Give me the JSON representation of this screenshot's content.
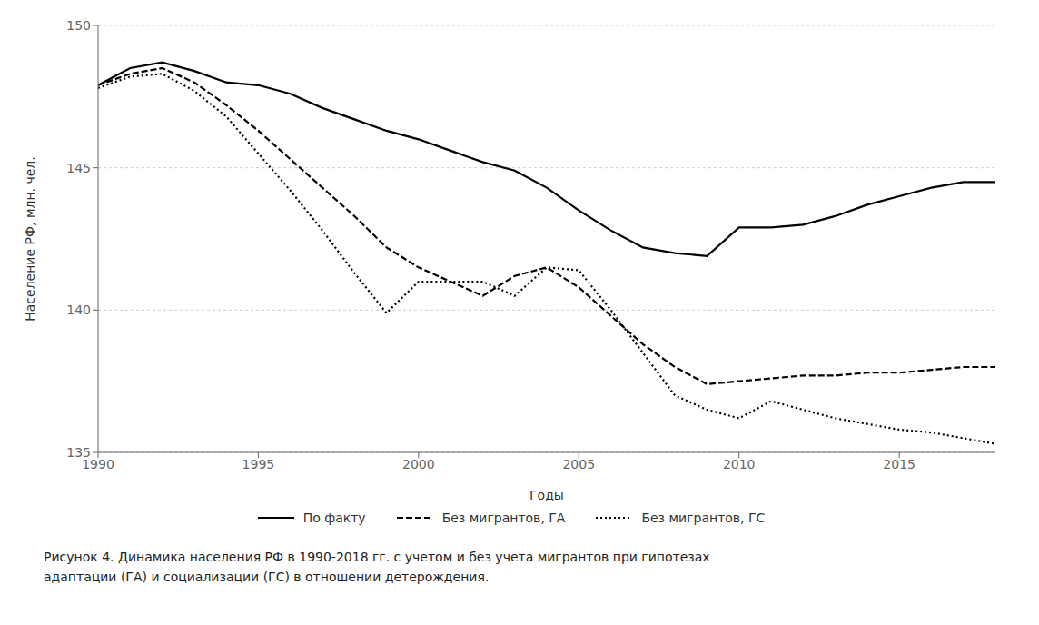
{
  "chart_data": {
    "type": "line",
    "x": [
      1990,
      1991,
      1992,
      1993,
      1994,
      1995,
      1996,
      1997,
      1998,
      1999,
      2000,
      2001,
      2002,
      2003,
      2004,
      2005,
      2006,
      2007,
      2008,
      2009,
      2010,
      2011,
      2012,
      2013,
      2014,
      2015,
      2016,
      2017,
      2018
    ],
    "series": [
      {
        "name": "По факту",
        "color": "#000000",
        "line_style": "solid",
        "values": [
          147.9,
          148.5,
          148.7,
          148.4,
          148.0,
          147.9,
          147.6,
          147.1,
          146.7,
          146.3,
          146.0,
          145.6,
          145.2,
          144.9,
          144.3,
          143.5,
          142.8,
          142.2,
          142.0,
          141.9,
          142.9,
          142.9,
          143.0,
          143.3,
          143.7,
          144.0,
          144.3,
          144.5,
          144.5
        ]
      },
      {
        "name": "Без мигрантов, ГА",
        "color": "#000000",
        "line_style": "dashed",
        "values": [
          147.9,
          148.3,
          148.5,
          148.0,
          147.2,
          146.3,
          145.3,
          144.3,
          143.3,
          142.2,
          141.5,
          141.0,
          140.5,
          141.2,
          141.5,
          140.8,
          139.8,
          138.8,
          138.0,
          137.4,
          137.5,
          137.6,
          137.7,
          137.7,
          137.8,
          137.8,
          137.9,
          138.0,
          138.0
        ]
      },
      {
        "name": "Без мигрантов, ГС",
        "color": "#000000",
        "line_style": "dotted",
        "values": [
          147.8,
          148.2,
          148.3,
          147.7,
          146.8,
          145.5,
          144.2,
          142.8,
          141.3,
          139.9,
          141.0,
          141.0,
          141.0,
          140.5,
          141.5,
          141.4,
          140.0,
          138.5,
          137.0,
          136.5,
          136.2,
          136.8,
          136.5,
          136.2,
          136.0,
          135.8,
          135.7,
          135.5,
          135.3
        ]
      }
    ],
    "xlim": [
      1990,
      2018
    ],
    "xticks": [
      1990,
      1995,
      2000,
      2005,
      2010,
      2015
    ],
    "ylim": [
      135,
      150
    ],
    "yticks": [
      135,
      140,
      145,
      150
    ],
    "ylabel": "Население РФ, млн. чел.",
    "xlabel": "Годы",
    "grid": true,
    "caption": [
      "Рисунок 4. Динамика населения РФ в 1990-2018 гг. с учетом и без учета мигрантов при гипотезах",
      "адаптации (ГА) и социализации (ГС) в отношении детерождения."
    ]
  }
}
